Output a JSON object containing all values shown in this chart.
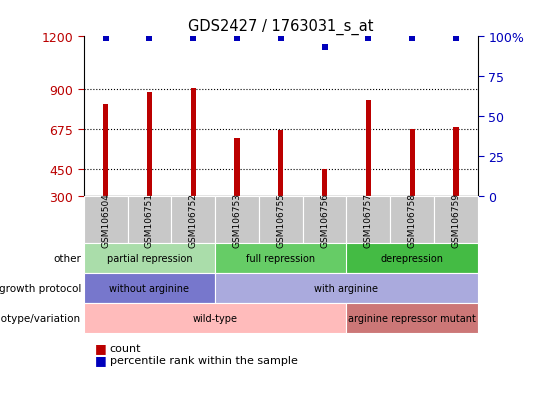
{
  "title": "GDS2427 / 1763031_s_at",
  "samples": [
    "GSM106504",
    "GSM106751",
    "GSM106752",
    "GSM106753",
    "GSM106755",
    "GSM106756",
    "GSM106757",
    "GSM106758",
    "GSM106759"
  ],
  "counts": [
    820,
    885,
    910,
    625,
    670,
    450,
    840,
    675,
    685
  ],
  "percentiles": [
    99,
    99,
    99,
    99,
    99,
    93,
    99,
    99,
    99
  ],
  "ylim_left": [
    300,
    1200
  ],
  "yticks_left": [
    300,
    450,
    675,
    900,
    1200
  ],
  "grid_yticks": [
    450,
    675,
    900
  ],
  "ylim_right": [
    0,
    100
  ],
  "yticks_right": [
    0,
    25,
    50,
    75,
    100
  ],
  "bar_color": "#bb0000",
  "dot_color": "#0000bb",
  "annotation_rows": [
    {
      "label": "other",
      "segments": [
        {
          "text": "partial repression",
          "start": 0,
          "end": 3,
          "color": "#aaddaa"
        },
        {
          "text": "full repression",
          "start": 3,
          "end": 6,
          "color": "#66cc66"
        },
        {
          "text": "derepression",
          "start": 6,
          "end": 9,
          "color": "#44bb44"
        }
      ]
    },
    {
      "label": "growth protocol",
      "segments": [
        {
          "text": "without arginine",
          "start": 0,
          "end": 3,
          "color": "#7777cc"
        },
        {
          "text": "with arginine",
          "start": 3,
          "end": 9,
          "color": "#aaaadd"
        }
      ]
    },
    {
      "label": "genotype/variation",
      "segments": [
        {
          "text": "wild-type",
          "start": 0,
          "end": 6,
          "color": "#ffbbbb"
        },
        {
          "text": "arginine repressor mutant",
          "start": 6,
          "end": 9,
          "color": "#cc7777"
        }
      ]
    }
  ]
}
